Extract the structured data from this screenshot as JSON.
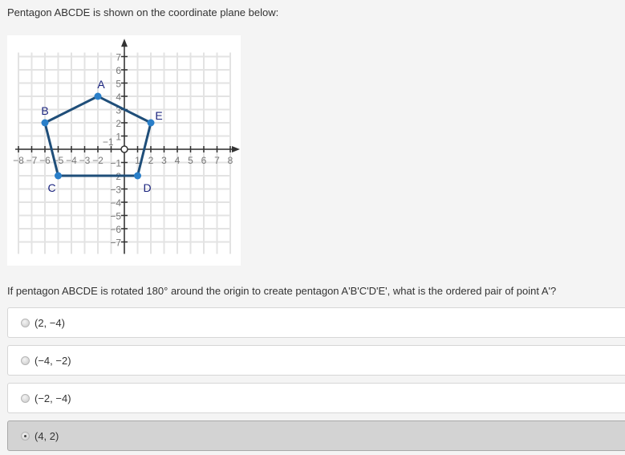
{
  "question_intro": "Pentagon ABCDE is shown on the coordinate plane below:",
  "question": "If pentagon ABCDE is rotated 180° around the origin to create pentagon A'B'C'D'E', what is the ordered pair of point A'?",
  "chart_data": {
    "type": "line",
    "xlim": [
      -8,
      8
    ],
    "ylim": [
      -7,
      7
    ],
    "grid": true,
    "x_ticks": [
      "−8",
      "−7",
      "−6",
      "−5",
      "−4",
      "−3",
      "−2",
      "−1",
      "1",
      "2",
      "3",
      "4",
      "5",
      "6",
      "7",
      "8"
    ],
    "y_ticks": [
      "7",
      "6",
      "5",
      "4",
      "3",
      "2",
      "1",
      "−1",
      "−2",
      "−3",
      "−4",
      "−5",
      "−6",
      "−7"
    ],
    "points": [
      {
        "label": "A",
        "x": -2,
        "y": 4
      },
      {
        "label": "B",
        "x": -6,
        "y": 2
      },
      {
        "label": "C",
        "x": -5,
        "y": -2
      },
      {
        "label": "D",
        "x": 1,
        "y": -2
      },
      {
        "label": "E",
        "x": 2,
        "y": 2
      }
    ],
    "closed": true,
    "line_color": "#1f4e79",
    "point_color": "#2a7fc9"
  },
  "options": [
    {
      "label": "(2, −4)",
      "selected": false
    },
    {
      "label": "(−4, −2)",
      "selected": false
    },
    {
      "label": "(−2, −4)",
      "selected": false
    },
    {
      "label": "(4, 2)",
      "selected": true
    }
  ]
}
